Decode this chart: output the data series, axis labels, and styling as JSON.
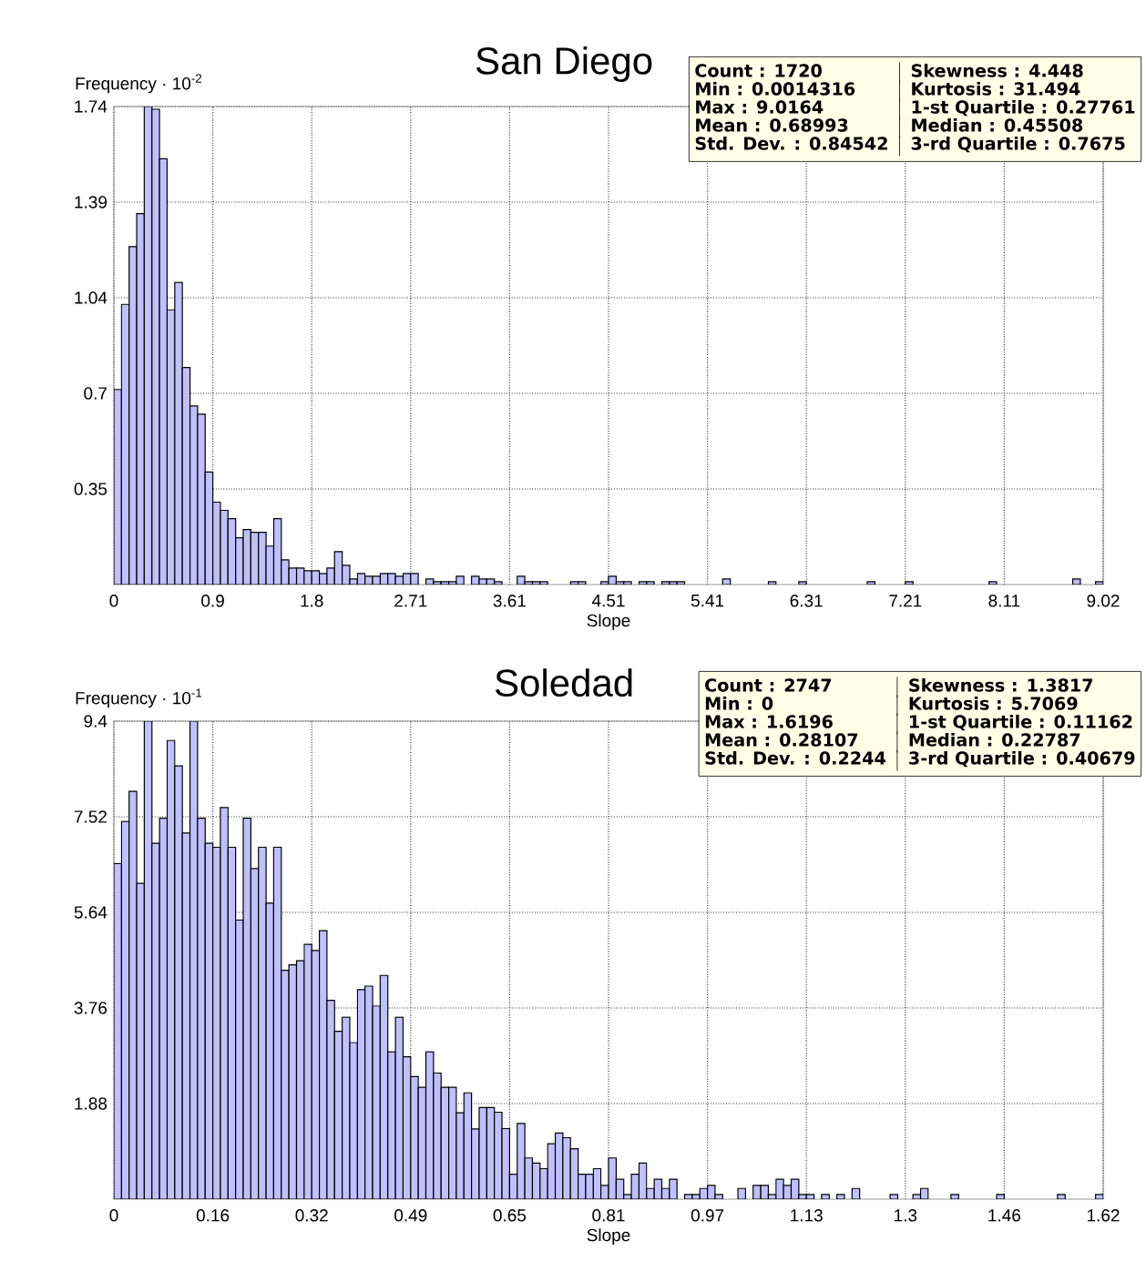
{
  "chart_data": [
    {
      "type": "histogram",
      "title": "San Diego",
      "xlabel": "Slope",
      "ylabel": "Frequency · 10$^{-2}$",
      "color": "#c0c0ff",
      "grid": true,
      "xlim": [
        0,
        9.0164
      ],
      "ylim": [
        0,
        1.74
      ],
      "xticks": [
        0,
        {
          "value": 0.90164,
          "label": "0.9"
        },
        {
          "value": 1.80328,
          "label": "1.8"
        },
        {
          "value": 2.705,
          "label": "2.71"
        },
        {
          "value": 3.60656,
          "label": "3.61"
        },
        {
          "value": 4.5082,
          "label": "4.51"
        },
        {
          "value": 5.40984,
          "label": "5.41"
        },
        {
          "value": 6.31148,
          "label": "6.31"
        },
        {
          "value": 7.21312,
          "label": "7.21"
        },
        {
          "value": 8.11476,
          "label": "8.11"
        },
        {
          "value": 9.0164,
          "label": "9.02"
        }
      ],
      "yticks": [
        {
          "value": 0.348,
          "label": "0.35"
        },
        {
          "value": 0.696,
          "label": "0.7"
        },
        {
          "value": 1.044,
          "label": "1.04"
        },
        {
          "value": 1.392,
          "label": "1.39"
        },
        1.74
      ],
      "annotations": [
        "Count : 1720",
        "Skewness : 4.448",
        "Min : 0.0014316",
        "Kurtosis : 31.494",
        "Max : 9.0164",
        "1-st Quartile : 0.27761",
        "Mean : 0.68993",
        "Median : 0.45508",
        "Std. Dev. : 0.84542",
        "3-rd Quartile : 0.7675"
      ],
      "bins": [
        0,
        0.069,
        0.139,
        0.208,
        0.277,
        0.347,
        0.416,
        0.485,
        0.555,
        0.624,
        0.694,
        0.763,
        0.832,
        0.902,
        0.971,
        1.04,
        1.11,
        1.179,
        1.248,
        1.318,
        1.387,
        1.457,
        1.526,
        1.595,
        1.665,
        1.734,
        1.803,
        1.873,
        1.942,
        2.011,
        2.081,
        2.15,
        2.219,
        2.289,
        2.358,
        2.428,
        2.497,
        2.566,
        2.636,
        2.705,
        2.774,
        2.844,
        2.913,
        2.982,
        3.052,
        3.121,
        3.19,
        3.26,
        3.329,
        3.398,
        3.468,
        3.537,
        3.607,
        3.676,
        3.745,
        3.815,
        3.884,
        3.953,
        4.023,
        4.092,
        4.162,
        4.231,
        4.3,
        4.37,
        4.439,
        4.508,
        4.578,
        4.647,
        4.716,
        4.786,
        4.855,
        4.924,
        4.994,
        5.063,
        5.132,
        5.202,
        5.271,
        5.341,
        5.41,
        5.479,
        5.548,
        5.618,
        5.687,
        5.756,
        5.826,
        5.895,
        5.965,
        6.034,
        6.103,
        6.173,
        6.242,
        6.311,
        6.381,
        6.45,
        6.52,
        6.589,
        6.658,
        6.728,
        6.797,
        6.866,
        6.936,
        7.005,
        7.074,
        7.144,
        7.213,
        7.283,
        7.352,
        7.421,
        7.491,
        7.56,
        7.629,
        7.699,
        7.768,
        7.837,
        7.907,
        7.976,
        8.045,
        8.115,
        8.184,
        8.253,
        8.323,
        8.392,
        8.461,
        8.531,
        8.6,
        8.67,
        8.739,
        8.808,
        8.878,
        8.947,
        9.016
      ],
      "values": [
        0.71,
        1.02,
        1.23,
        1.35,
        1.74,
        1.73,
        1.55,
        1.0,
        1.1,
        0.79,
        0.65,
        0.62,
        0.41,
        0.3,
        0.27,
        0.24,
        0.17,
        0.2,
        0.19,
        0.19,
        0.14,
        0.24,
        0.09,
        0.06,
        0.06,
        0.05,
        0.05,
        0.04,
        0.06,
        0.12,
        0.07,
        0.02,
        0.04,
        0.03,
        0.03,
        0.04,
        0.04,
        0.03,
        0.04,
        0.04,
        0,
        0.02,
        0.01,
        0.01,
        0.01,
        0.03,
        0,
        0.03,
        0.02,
        0.02,
        0.01,
        0,
        0,
        0.03,
        0.01,
        0.01,
        0.01,
        0,
        0,
        0,
        0.01,
        0.01,
        0,
        0,
        0.01,
        0.03,
        0.01,
        0.01,
        0,
        0.01,
        0.01,
        0,
        0.01,
        0.01,
        0.01,
        0,
        0,
        0,
        0,
        0,
        0.02,
        0,
        0,
        0,
        0,
        0,
        0.01,
        0,
        0,
        0,
        0.01,
        0,
        0,
        0,
        0,
        0,
        0,
        0,
        0,
        0.01,
        0,
        0,
        0,
        0,
        0.01,
        0,
        0,
        0,
        0,
        0,
        0,
        0,
        0,
        0,
        0,
        0.01,
        0,
        0,
        0,
        0,
        0,
        0,
        0,
        0,
        0,
        0,
        0.02,
        0,
        0,
        0.01
      ]
    },
    {
      "type": "histogram",
      "title": "Soledad",
      "xlabel": "Slope",
      "ylabel": "Frequency · 10$^{-1}$",
      "color": "#c0c0ff",
      "grid": true,
      "xlim": [
        0,
        1.6196
      ],
      "ylim": [
        0,
        9.4
      ],
      "xticks": [
        0,
        {
          "value": 0.16196,
          "label": "0.16"
        },
        {
          "value": 0.32392,
          "label": "0.32"
        },
        {
          "value": 0.48588,
          "label": "0.49"
        },
        {
          "value": 0.64784,
          "label": "0.65"
        },
        {
          "value": 0.8098,
          "label": "0.81"
        },
        {
          "value": 0.97176,
          "label": "0.97"
        },
        {
          "value": 1.13372,
          "label": "1.13"
        },
        {
          "value": 1.29568,
          "label": "1.3"
        },
        {
          "value": 1.45764,
          "label": "1.46"
        },
        {
          "value": 1.6196,
          "label": "1.62"
        }
      ],
      "yticks": [
        1.88,
        3.76,
        5.64,
        7.52,
        9.4
      ],
      "annotations": [
        "Count : 2747",
        "Skewness : 1.3817",
        "Min : 0",
        "Kurtosis : 5.7069",
        "Max : 1.6196",
        "1-st Quartile : 0.11162",
        "Mean : 0.28107",
        "Median : 0.22787",
        "Std. Dev. : 0.2244",
        "3-rd Quartile : 0.40679"
      ],
      "bins": [
        0,
        0.0125,
        0.0249,
        0.0374,
        0.0498,
        0.0623,
        0.0748,
        0.0872,
        0.0997,
        0.1121,
        0.1246,
        0.137,
        0.1495,
        0.162,
        0.1744,
        0.1869,
        0.1993,
        0.2118,
        0.2243,
        0.2367,
        0.2492,
        0.2616,
        0.2741,
        0.2865,
        0.299,
        0.3115,
        0.3239,
        0.3364,
        0.3488,
        0.3613,
        0.3738,
        0.3862,
        0.3987,
        0.4111,
        0.4236,
        0.436,
        0.4485,
        0.461,
        0.4734,
        0.4859,
        0.4983,
        0.5108,
        0.5233,
        0.5357,
        0.5482,
        0.5606,
        0.5731,
        0.5855,
        0.598,
        0.6105,
        0.6229,
        0.6354,
        0.6478,
        0.6603,
        0.6728,
        0.6852,
        0.6977,
        0.7101,
        0.7226,
        0.735,
        0.7475,
        0.76,
        0.7724,
        0.7849,
        0.7973,
        0.8098,
        0.8223,
        0.8347,
        0.8472,
        0.8596,
        0.8721,
        0.8846,
        0.897,
        0.9095,
        0.9219,
        0.9344,
        0.9468,
        0.9593,
        0.9718,
        0.9842,
        0.9967,
        1.0091,
        1.0216,
        1.0341,
        1.0465,
        1.059,
        1.0714,
        1.0839,
        1.0963,
        1.1088,
        1.1213,
        1.1337,
        1.1462,
        1.1586,
        1.1711,
        1.1836,
        1.196,
        1.2085,
        1.2209,
        1.2334,
        1.2458,
        1.2583,
        1.2708,
        1.2832,
        1.2957,
        1.3081,
        1.3206,
        1.333,
        1.3455,
        1.358,
        1.3704,
        1.3829,
        1.3953,
        1.4078,
        1.4203,
        1.4327,
        1.4452,
        1.4576,
        1.4701,
        1.4826,
        1.495,
        1.5075,
        1.5199,
        1.5324,
        1.5448,
        1.5573,
        1.5698,
        1.5822,
        1.5947,
        1.6071,
        1.6196
      ],
      "values": [
        6.6,
        7.43,
        8.02,
        6.21,
        9.4,
        7.0,
        7.49,
        9.02,
        8.52,
        7.2,
        9.4,
        7.49,
        7.0,
        6.92,
        7.7,
        6.92,
        5.49,
        7.49,
        6.5,
        6.92,
        5.82,
        6.92,
        4.5,
        4.61,
        4.69,
        5.01,
        4.89,
        5.28,
        3.91,
        3.3,
        3.58,
        3.08,
        4.12,
        4.19,
        3.8,
        4.4,
        2.9,
        3.58,
        2.8,
        2.41,
        2.2,
        2.9,
        2.48,
        2.2,
        2.2,
        1.7,
        2.09,
        1.38,
        1.8,
        1.8,
        1.71,
        1.39,
        0.49,
        1.49,
        0.81,
        0.71,
        0.6,
        1.09,
        1.3,
        1.21,
        0.99,
        0.49,
        0.49,
        0.6,
        0.27,
        0.81,
        0.39,
        0.09,
        0.49,
        0.71,
        0.21,
        0.39,
        0.21,
        0.39,
        0,
        0.09,
        0.09,
        0.21,
        0.27,
        0.09,
        0,
        0,
        0.21,
        0,
        0.27,
        0.27,
        0.09,
        0.39,
        0.27,
        0.39,
        0.09,
        0.09,
        0,
        0.09,
        0,
        0.09,
        0,
        0.21,
        0,
        0,
        0,
        0,
        0.09,
        0,
        0,
        0.09,
        0.21,
        0,
        0,
        0,
        0.09,
        0,
        0,
        0,
        0,
        0,
        0.09,
        0,
        0,
        0,
        0,
        0,
        0,
        0,
        0.09,
        0,
        0,
        0,
        0,
        0.09
      ]
    }
  ]
}
